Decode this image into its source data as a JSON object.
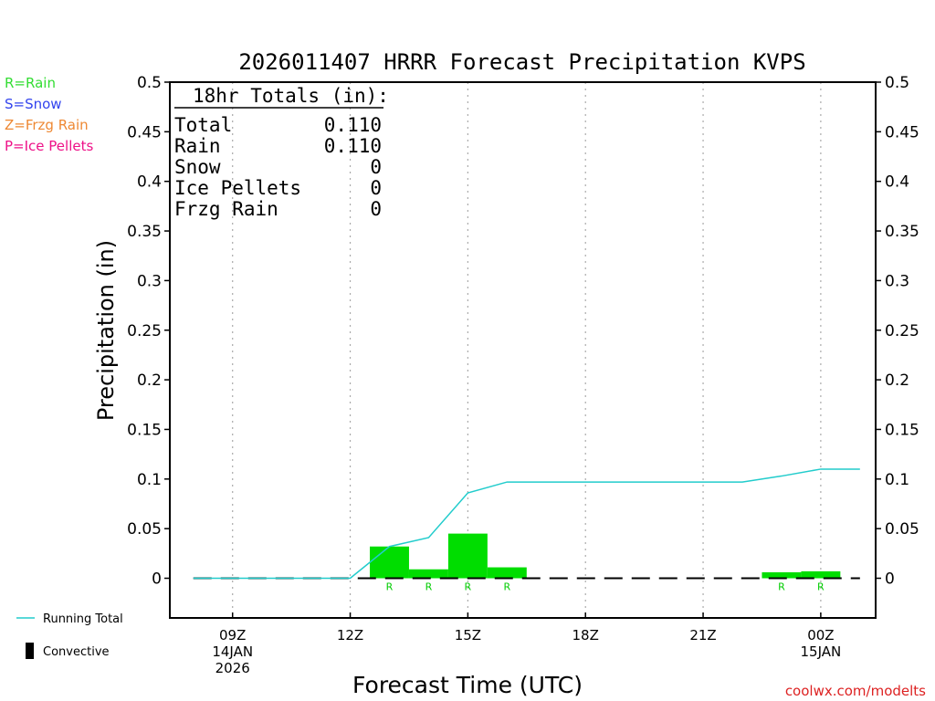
{
  "chart_data": {
    "type": "bar",
    "title": "2026011407 HRRR Forecast Precipitation KVPS",
    "xlabel": "Forecast Time (UTC)",
    "ylabel": "Precipitation (in)",
    "ylim": [
      -0.04,
      0.5
    ],
    "xlim": [
      7.4,
      25.4
    ],
    "y_ticks": [
      0,
      0.05,
      0.1,
      0.15,
      0.2,
      0.25,
      0.3,
      0.35,
      0.4,
      0.45,
      0.5
    ],
    "y_tick_labels": [
      "0",
      "0.05",
      "0.1",
      "0.15",
      "0.2",
      "0.25",
      "0.3",
      "0.35",
      "0.4",
      "0.45",
      "0.5"
    ],
    "x_ticks": [
      {
        "hour": 9,
        "lines": [
          "09Z",
          "14JAN",
          "2026"
        ]
      },
      {
        "hour": 12,
        "lines": [
          "12Z"
        ]
      },
      {
        "hour": 15,
        "lines": [
          "15Z"
        ]
      },
      {
        "hour": 18,
        "lines": [
          "18Z"
        ]
      },
      {
        "hour": 21,
        "lines": [
          "21Z"
        ]
      },
      {
        "hour": 24,
        "lines": [
          "00Z",
          "15JAN"
        ]
      }
    ],
    "bars": [
      {
        "hour": 13,
        "value": 0.032,
        "type": "R"
      },
      {
        "hour": 14,
        "value": 0.009,
        "type": "R"
      },
      {
        "hour": 15,
        "value": 0.045,
        "type": "R"
      },
      {
        "hour": 16,
        "value": 0.011,
        "type": "R"
      },
      {
        "hour": 17,
        "value": 0,
        "type": ""
      },
      {
        "hour": 18,
        "value": 0,
        "type": ""
      },
      {
        "hour": 19,
        "value": 0,
        "type": ""
      },
      {
        "hour": 20,
        "value": 0,
        "type": ""
      },
      {
        "hour": 21,
        "value": 0,
        "type": ""
      },
      {
        "hour": 22,
        "value": 0,
        "type": ""
      },
      {
        "hour": 23,
        "value": 0.006,
        "type": "R"
      },
      {
        "hour": 24,
        "value": 0.007,
        "type": "R"
      }
    ],
    "running_total": {
      "name": "Running Total",
      "x": [
        8,
        9,
        10,
        11,
        12,
        13,
        14,
        15,
        16,
        17,
        18,
        19,
        20,
        21,
        22,
        23,
        24,
        25
      ],
      "y": [
        0,
        0,
        0,
        0,
        0,
        0.032,
        0.041,
        0.086,
        0.097,
        0.097,
        0.097,
        0.097,
        0.097,
        0.097,
        0.097,
        0.103,
        0.11,
        0.11
      ]
    },
    "baseline_hours": [
      8,
      25
    ],
    "totals_box": {
      "heading": "18hr Totals (in):",
      "rows": [
        {
          "label": "Total",
          "value": "0.110"
        },
        {
          "label": "Rain",
          "value": "0.110"
        },
        {
          "label": "Snow",
          "value": "0"
        },
        {
          "label": "Ice Pellets",
          "value": "0"
        },
        {
          "label": "Frzg Rain",
          "value": "0"
        }
      ]
    },
    "type_legend": [
      {
        "text": "R=Rain",
        "color": "#33dd33"
      },
      {
        "text": "S=Snow",
        "color": "#3344ee"
      },
      {
        "text": "Z=Frzg Rain",
        "color": "#ee8833"
      },
      {
        "text": "P=Ice Pellets",
        "color": "#ee1188"
      }
    ],
    "series_legend": [
      {
        "text": "Running Total",
        "color": "#22cccc"
      },
      {
        "text": "Convective",
        "color": "#000000"
      }
    ],
    "colors": {
      "bar": "#00dd00",
      "type_letter": "#00cc00",
      "running_total": "#22cccc",
      "baseline": "#000000",
      "grid": "#aaaaaa",
      "credit": "#dd2222"
    },
    "credit": "coolwx.com/modelts"
  }
}
